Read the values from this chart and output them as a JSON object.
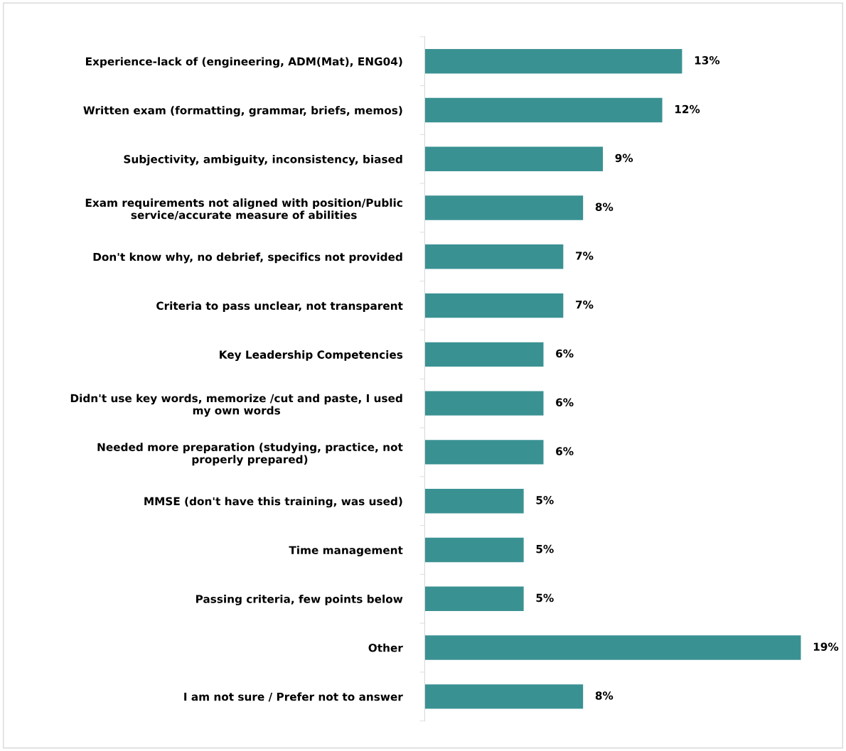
{
  "chart_data": {
    "type": "bar",
    "orientation": "horizontal",
    "categories": [
      "Experience-lack of (engineering, ADM(Mat), ENG04)",
      "Written exam (formatting, grammar, briefs, memos)",
      "Subjectivity, ambiguity, inconsistency, biased",
      "Exam requirements not aligned with position/Public\nservice/accurate measure of abilities",
      "Don't know why, no debrief, specifics not provided",
      "Criteria to pass unclear, not transparent",
      "Key Leadership Competencies",
      "Didn't use key words, memorize /cut and paste, I used\nmy own words",
      "Needed more preparation (studying, practice, not\nproperly prepared)",
      "MMSE (don't have this training, was used)",
      "Time management",
      "Passing criteria, few points below",
      "Other",
      "I am not sure / Prefer not to answer"
    ],
    "values": [
      13,
      12,
      9,
      8,
      7,
      7,
      6,
      6,
      6,
      5,
      5,
      5,
      19,
      8
    ],
    "value_labels": [
      "13%",
      "12%",
      "9%",
      "8%",
      "7%",
      "7%",
      "6%",
      "6%",
      "6%",
      "5%",
      "5%",
      "5%",
      "19%",
      "8%"
    ],
    "color": "#3a9192",
    "grid": false,
    "legend": false
  }
}
